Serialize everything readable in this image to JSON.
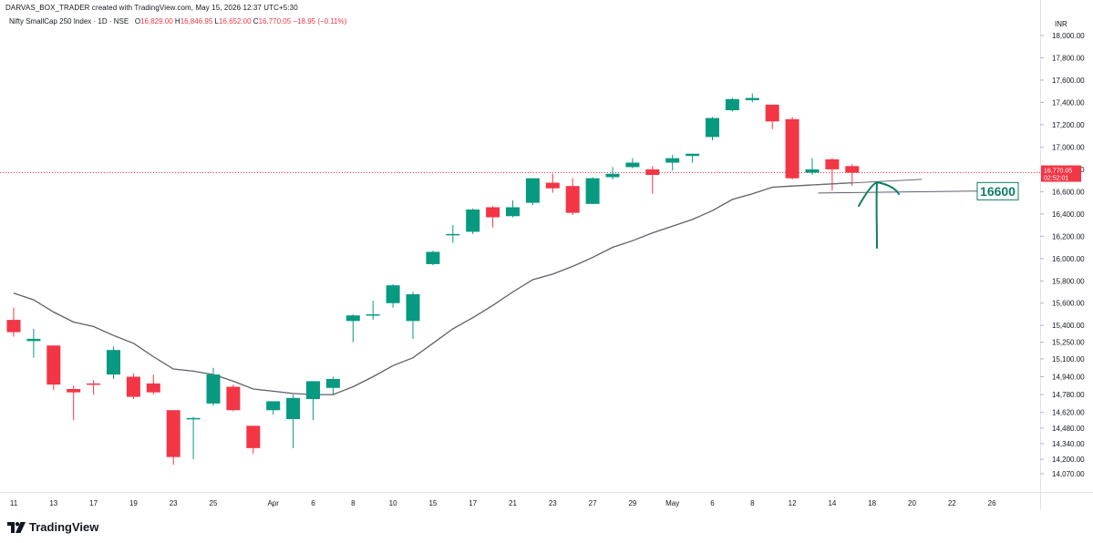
{
  "header": {
    "credit": "DARVAS_BOX_TRADER created with TradingView.com, May 15, 2026 12:37 UTC+5:30",
    "symbol": "Nifty SmallCap 250 Index · 1D · NSE",
    "open_label": "O",
    "open": "16,829.00",
    "high_label": "H",
    "high": "16,846.95",
    "low_label": "L",
    "low": "16,652.00",
    "close_label": "C",
    "close": "16,770.05",
    "change": "−18.95 (−0.11%)",
    "currency": "INR"
  },
  "price_tag": {
    "price": "16,770.05",
    "countdown": "02:52:01"
  },
  "annotation": {
    "label": "16600"
  },
  "brand": {
    "name": "TradingView"
  },
  "colors": {
    "up": "#089981",
    "down": "#f23645",
    "ma": "#5d606b",
    "annotation": "#0e7d6b",
    "price_line": "#f23645"
  },
  "chart_data": {
    "type": "candlestick",
    "symbol": "Nifty SmallCap 250 Index",
    "interval": "1D",
    "exchange": "NSE",
    "y_axis_ticks": [
      18000,
      17800,
      17600,
      17400,
      17200,
      17000,
      16800,
      16600,
      16400,
      16200,
      16000,
      15800,
      15600,
      15400,
      15250,
      15100,
      14940,
      14780,
      14620,
      14480,
      14340,
      14200,
      14070
    ],
    "y_axis_tick_labels": [
      "18,000.00",
      "17,800.00",
      "17,600.00",
      "17,400.00",
      "17,200.00",
      "17,000.00",
      "16,800.00",
      "16,600.00",
      "16,400.00",
      "16,200.00",
      "16,000.00",
      "15,800.00",
      "15,600.00",
      "15,400.00",
      "15,250.00",
      "15,100.00",
      "14,940.00",
      "14,780.00",
      "14,620.00",
      "14,480.00",
      "14,340.00",
      "14,200.00",
      "14,070.00"
    ],
    "x_axis_ticks": [
      {
        "label": "11",
        "bar": 0
      },
      {
        "label": "13",
        "bar": 2
      },
      {
        "label": "17",
        "bar": 4
      },
      {
        "label": "19",
        "bar": 6
      },
      {
        "label": "23",
        "bar": 8
      },
      {
        "label": "25",
        "bar": 10
      },
      {
        "label": "Apr",
        "bar": 13
      },
      {
        "label": "6",
        "bar": 15
      },
      {
        "label": "8",
        "bar": 17
      },
      {
        "label": "10",
        "bar": 19
      },
      {
        "label": "15",
        "bar": 21
      },
      {
        "label": "17",
        "bar": 23
      },
      {
        "label": "21",
        "bar": 25
      },
      {
        "label": "23",
        "bar": 27
      },
      {
        "label": "27",
        "bar": 29
      },
      {
        "label": "29",
        "bar": 31
      },
      {
        "label": "May",
        "bar": 33
      },
      {
        "label": "6",
        "bar": 35
      },
      {
        "label": "8",
        "bar": 37
      },
      {
        "label": "12",
        "bar": 39
      },
      {
        "label": "14",
        "bar": 41
      },
      {
        "label": "18",
        "bar": 43
      },
      {
        "label": "20",
        "bar": 45
      },
      {
        "label": "22",
        "bar": 47
      },
      {
        "label": "26",
        "bar": 49
      }
    ],
    "candles": [
      {
        "o": 15450,
        "h": 15560,
        "l": 15300,
        "c": 15340
      },
      {
        "o": 15260,
        "h": 15370,
        "l": 15110,
        "c": 15280
      },
      {
        "o": 15220,
        "h": 15220,
        "l": 14820,
        "c": 14870
      },
      {
        "o": 14830,
        "h": 14860,
        "l": 14550,
        "c": 14800
      },
      {
        "o": 14880,
        "h": 14910,
        "l": 14780,
        "c": 14870
      },
      {
        "o": 14960,
        "h": 15210,
        "l": 14920,
        "c": 15180
      },
      {
        "o": 14940,
        "h": 14970,
        "l": 14740,
        "c": 14760
      },
      {
        "o": 14880,
        "h": 14960,
        "l": 14780,
        "c": 14800
      },
      {
        "o": 14640,
        "h": 14640,
        "l": 14150,
        "c": 14220
      },
      {
        "o": 14560,
        "h": 14580,
        "l": 14200,
        "c": 14570
      },
      {
        "o": 14700,
        "h": 15020,
        "l": 14680,
        "c": 14960
      },
      {
        "o": 14850,
        "h": 14870,
        "l": 14630,
        "c": 14640
      },
      {
        "o": 14500,
        "h": 14500,
        "l": 14250,
        "c": 14300
      },
      {
        "o": 14640,
        "h": 14720,
        "l": 14600,
        "c": 14720
      },
      {
        "o": 14560,
        "h": 14780,
        "l": 14300,
        "c": 14750
      },
      {
        "o": 14740,
        "h": 14900,
        "l": 14550,
        "c": 14900
      },
      {
        "o": 14840,
        "h": 14940,
        "l": 14780,
        "c": 14920
      },
      {
        "o": 15440,
        "h": 15500,
        "l": 15250,
        "c": 15490
      },
      {
        "o": 15490,
        "h": 15620,
        "l": 15450,
        "c": 15500
      },
      {
        "o": 15600,
        "h": 15770,
        "l": 15560,
        "c": 15760
      },
      {
        "o": 15440,
        "h": 15700,
        "l": 15280,
        "c": 15680
      },
      {
        "o": 15950,
        "h": 16070,
        "l": 15940,
        "c": 16060
      },
      {
        "o": 16220,
        "h": 16300,
        "l": 16140,
        "c": 16220
      },
      {
        "o": 16240,
        "h": 16450,
        "l": 16220,
        "c": 16440
      },
      {
        "o": 16460,
        "h": 16470,
        "l": 16280,
        "c": 16370
      },
      {
        "o": 16380,
        "h": 16520,
        "l": 16370,
        "c": 16460
      },
      {
        "o": 16500,
        "h": 16720,
        "l": 16480,
        "c": 16720
      },
      {
        "o": 16680,
        "h": 16760,
        "l": 16590,
        "c": 16630
      },
      {
        "o": 16650,
        "h": 16720,
        "l": 16390,
        "c": 16410
      },
      {
        "o": 16490,
        "h": 16730,
        "l": 16490,
        "c": 16720
      },
      {
        "o": 16730,
        "h": 16820,
        "l": 16710,
        "c": 16760
      },
      {
        "o": 16820,
        "h": 16900,
        "l": 16810,
        "c": 16860
      },
      {
        "o": 16800,
        "h": 16830,
        "l": 16580,
        "c": 16750
      },
      {
        "o": 16860,
        "h": 16930,
        "l": 16790,
        "c": 16900
      },
      {
        "o": 16920,
        "h": 16940,
        "l": 16860,
        "c": 16940
      },
      {
        "o": 17090,
        "h": 17270,
        "l": 17060,
        "c": 17260
      },
      {
        "o": 17330,
        "h": 17440,
        "l": 17320,
        "c": 17430
      },
      {
        "o": 17420,
        "h": 17480,
        "l": 17400,
        "c": 17440
      },
      {
        "o": 17380,
        "h": 17380,
        "l": 17160,
        "c": 17230
      },
      {
        "o": 17250,
        "h": 17270,
        "l": 16710,
        "c": 16720
      },
      {
        "o": 16770,
        "h": 16900,
        "l": 16750,
        "c": 16800
      },
      {
        "o": 16890,
        "h": 16900,
        "l": 16610,
        "c": 16800
      },
      {
        "o": 16829,
        "h": 16847,
        "l": 16652,
        "c": 16770
      }
    ],
    "moving_average": [
      15690,
      15630,
      15520,
      15430,
      15390,
      15310,
      15240,
      15120,
      15010,
      14990,
      14960,
      14900,
      14830,
      14810,
      14790,
      14780,
      14780,
      14850,
      14940,
      15040,
      15110,
      15240,
      15370,
      15470,
      15580,
      15700,
      15810,
      15860,
      15930,
      16010,
      16100,
      16160,
      16230,
      16290,
      16350,
      16430,
      16530,
      16580,
      16640,
      16650,
      16660,
      16670,
      16680
    ],
    "annotations": {
      "support_level": 16600,
      "trendline": {
        "from": {
          "bar": 40,
          "price": 16660
        },
        "to": {
          "bar": 45.5,
          "price": 16710
        }
      },
      "support_line": {
        "from_bar": 40.3,
        "to_bar": 49.5
      }
    }
  }
}
